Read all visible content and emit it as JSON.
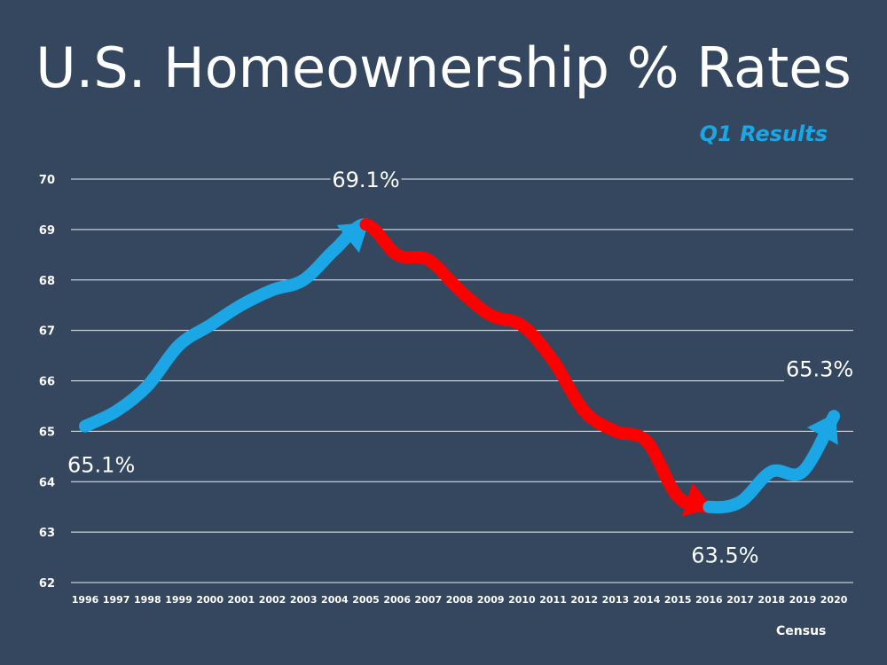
{
  "chart_data": {
    "type": "line",
    "title": "U.S. Homeownership % Rates",
    "subtitle": "Q1 Results",
    "source": "Census",
    "xlabel": "",
    "ylabel": "",
    "ylim": [
      62,
      70
    ],
    "yticks": [
      62,
      63,
      64,
      65,
      66,
      67,
      68,
      69,
      70
    ],
    "grid": true,
    "x": [
      1996,
      1997,
      1998,
      1999,
      2000,
      2001,
      2002,
      2003,
      2004,
      2005,
      2006,
      2007,
      2008,
      2009,
      2010,
      2011,
      2012,
      2013,
      2014,
      2015,
      2016,
      2017,
      2018,
      2019,
      2020
    ],
    "values": [
      65.1,
      65.4,
      65.9,
      66.7,
      67.1,
      67.5,
      67.8,
      68.0,
      68.6,
      69.1,
      68.5,
      68.4,
      67.8,
      67.3,
      67.1,
      66.4,
      65.4,
      65.0,
      64.8,
      63.7,
      63.5,
      63.6,
      64.2,
      64.2,
      65.3
    ],
    "segments": [
      {
        "from": 1996,
        "to": 2005,
        "color": "#1ba6e6",
        "trend": "up"
      },
      {
        "from": 2005,
        "to": 2016,
        "color": "#ff0000",
        "trend": "down"
      },
      {
        "from": 2016,
        "to": 2020,
        "color": "#1ba6e6",
        "trend": "up"
      }
    ],
    "annotations": [
      {
        "text": "65.1%",
        "x": 1996,
        "y": 65.1
      },
      {
        "text": "69.1%",
        "x": 2005,
        "y": 69.1
      },
      {
        "text": "63.5%",
        "x": 2016,
        "y": 63.5
      },
      {
        "text": "65.3%",
        "x": 2020,
        "y": 65.3
      }
    ]
  }
}
